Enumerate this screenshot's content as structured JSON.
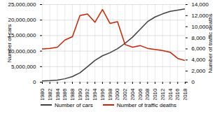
{
  "chart_data": {
    "type": "line",
    "x": [
      1980,
      1982,
      1984,
      1986,
      1988,
      1990,
      1992,
      1994,
      1996,
      1998,
      2000,
      2002,
      2004,
      2006,
      2008,
      2010,
      2012,
      2014,
      2016,
      2018
    ],
    "xlim": [
      1980,
      2018
    ],
    "xticks": [
      1980,
      1982,
      1984,
      1986,
      1988,
      1990,
      1992,
      1994,
      1996,
      1998,
      2000,
      2002,
      2004,
      2006,
      2008,
      2010,
      2012,
      2014,
      2016,
      2018
    ],
    "series": [
      {
        "name": "Number of cars",
        "color": "#404040",
        "values": [
          400000,
          500000,
          700000,
          1100000,
          1800000,
          3000000,
          5000000,
          7000000,
          8500000,
          9500000,
          10800000,
          12500000,
          14500000,
          17000000,
          19500000,
          21000000,
          22000000,
          22800000,
          23200000,
          23600000
        ]
      },
      {
        "name": "Number of traffic deaths",
        "color": "#cc2200",
        "axis": "y2",
        "values": [
          6000,
          6100,
          6300,
          7600,
          8200,
          12000,
          12300,
          10800,
          13100,
          10600,
          10900,
          6800,
          6300,
          6600,
          6100,
          5900,
          5700,
          5400,
          4300,
          3900
        ]
      }
    ],
    "ylabel": "Number of cars",
    "y2label": "Number of traffic deaths",
    "ylim": [
      0,
      25000000
    ],
    "yticks": [
      0,
      {
        "value": 5000000,
        "label": "5,000,000"
      },
      {
        "value": 10000000,
        "label": "10,000,000"
      },
      {
        "value": 15000000,
        "label": "15,000,000"
      },
      {
        "value": 20000000,
        "label": "20,000,000"
      },
      {
        "value": 25000000,
        "label": "25,000,000"
      }
    ],
    "y2lim": [
      0,
      14000
    ],
    "y2ticks": [
      0,
      {
        "value": 2000,
        "label": "2,000"
      },
      {
        "value": 4000,
        "label": "4,000"
      },
      {
        "value": 6000,
        "label": "6,000"
      },
      {
        "value": 8000,
        "label": "8,000"
      },
      {
        "value": 10000,
        "label": "10,000"
      },
      {
        "value": 12000,
        "label": "12,000"
      },
      {
        "value": 14000,
        "label": "14,000"
      }
    ],
    "grid": true,
    "legend": "bottom"
  }
}
